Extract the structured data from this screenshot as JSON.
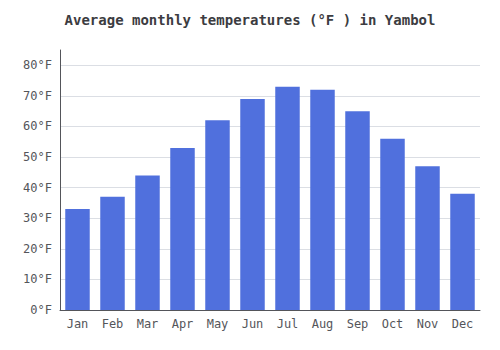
{
  "chart_data": {
    "type": "bar",
    "title": "Average monthly temperatures (°F ) in Yambol",
    "categories": [
      "Jan",
      "Feb",
      "Mar",
      "Apr",
      "May",
      "Jun",
      "Jul",
      "Aug",
      "Sep",
      "Oct",
      "Nov",
      "Dec"
    ],
    "values": [
      33,
      37,
      44,
      53,
      62,
      69,
      73,
      72,
      65,
      56,
      47,
      38
    ],
    "ylim": [
      0,
      85
    ],
    "yticks": [
      {
        "value": 0,
        "label": "0°F"
      },
      {
        "value": 10,
        "label": "10°F"
      },
      {
        "value": 20,
        "label": "20°F"
      },
      {
        "value": 30,
        "label": "30°F"
      },
      {
        "value": 40,
        "label": "40°F"
      },
      {
        "value": 50,
        "label": "50°F"
      },
      {
        "value": 60,
        "label": "60°F"
      },
      {
        "value": 70,
        "label": "70°F"
      },
      {
        "value": 80,
        "label": "80°F"
      }
    ],
    "grid": true
  }
}
